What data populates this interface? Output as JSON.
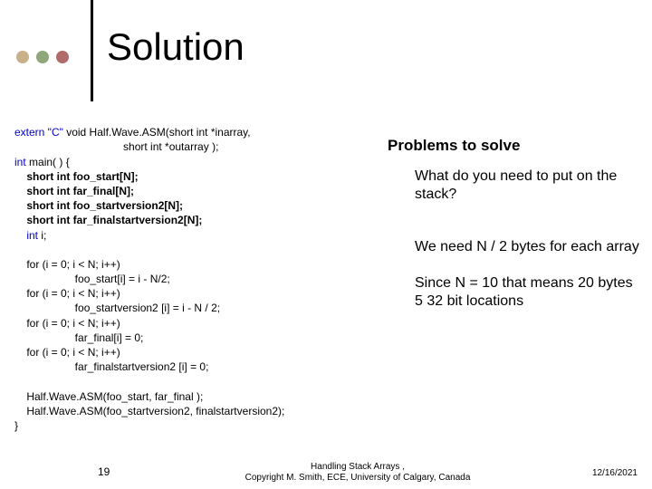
{
  "colors": {
    "bullets": [
      "#c8b18a",
      "#8fa77a",
      "#b06b6b"
    ],
    "keyword": "#0000cc",
    "text": "#000000",
    "background": "#ffffff",
    "vline": "#000000"
  },
  "title": "Solution",
  "code": {
    "l1a": "extern \"C\"",
    "l1b": " void Half.Wave.ASM(short int *inarray,",
    "l2": "                                    short int *outarray );",
    "l3a": "int",
    "l3b": " main( ) {",
    "l4": "    short int foo_start[N];",
    "l5": "    short int far_final[N];",
    "l6": "    short int foo_startversion2[N];",
    "l7": "    short int far_finalstartversion2[N];",
    "l8a": "    int",
    "l8b": " i;",
    "for_blk": "    for (i = 0; i < N; i++)\n                    foo_start[i] = i - N/2;\n    for (i = 0; i < N; i++)\n                    foo_startversion2 [i] = i - N / 2;\n    for (i = 0; i < N; i++)\n                    far_final[i] = 0;\n    for (i = 0; i < N; i++)\n                    far_finalstartversion2 [i] = 0;",
    "calls": "    Half.Wave.ASM(foo_start, far_final );\n    Half.Wave.ASM(foo_startversion2, finalstartversion2);",
    "close": "}"
  },
  "right": {
    "h": "Problems to solve",
    "q": "What do you need to put on the stack?",
    "a1": "We need N / 2 bytes for each array",
    "a2": "Since N = 10 that means 20 bytes\n5   32 bit locations"
  },
  "footer": {
    "page": "19",
    "mid1": "Handling Stack Arrays              ,",
    "mid2": "Copyright M. Smith, ECE, University of Calgary, Canada",
    "date": "12/16/2021"
  },
  "fontsizes": {
    "title": 42,
    "code": 12,
    "right_h": 17,
    "right_body": 16,
    "footer": 10
  }
}
